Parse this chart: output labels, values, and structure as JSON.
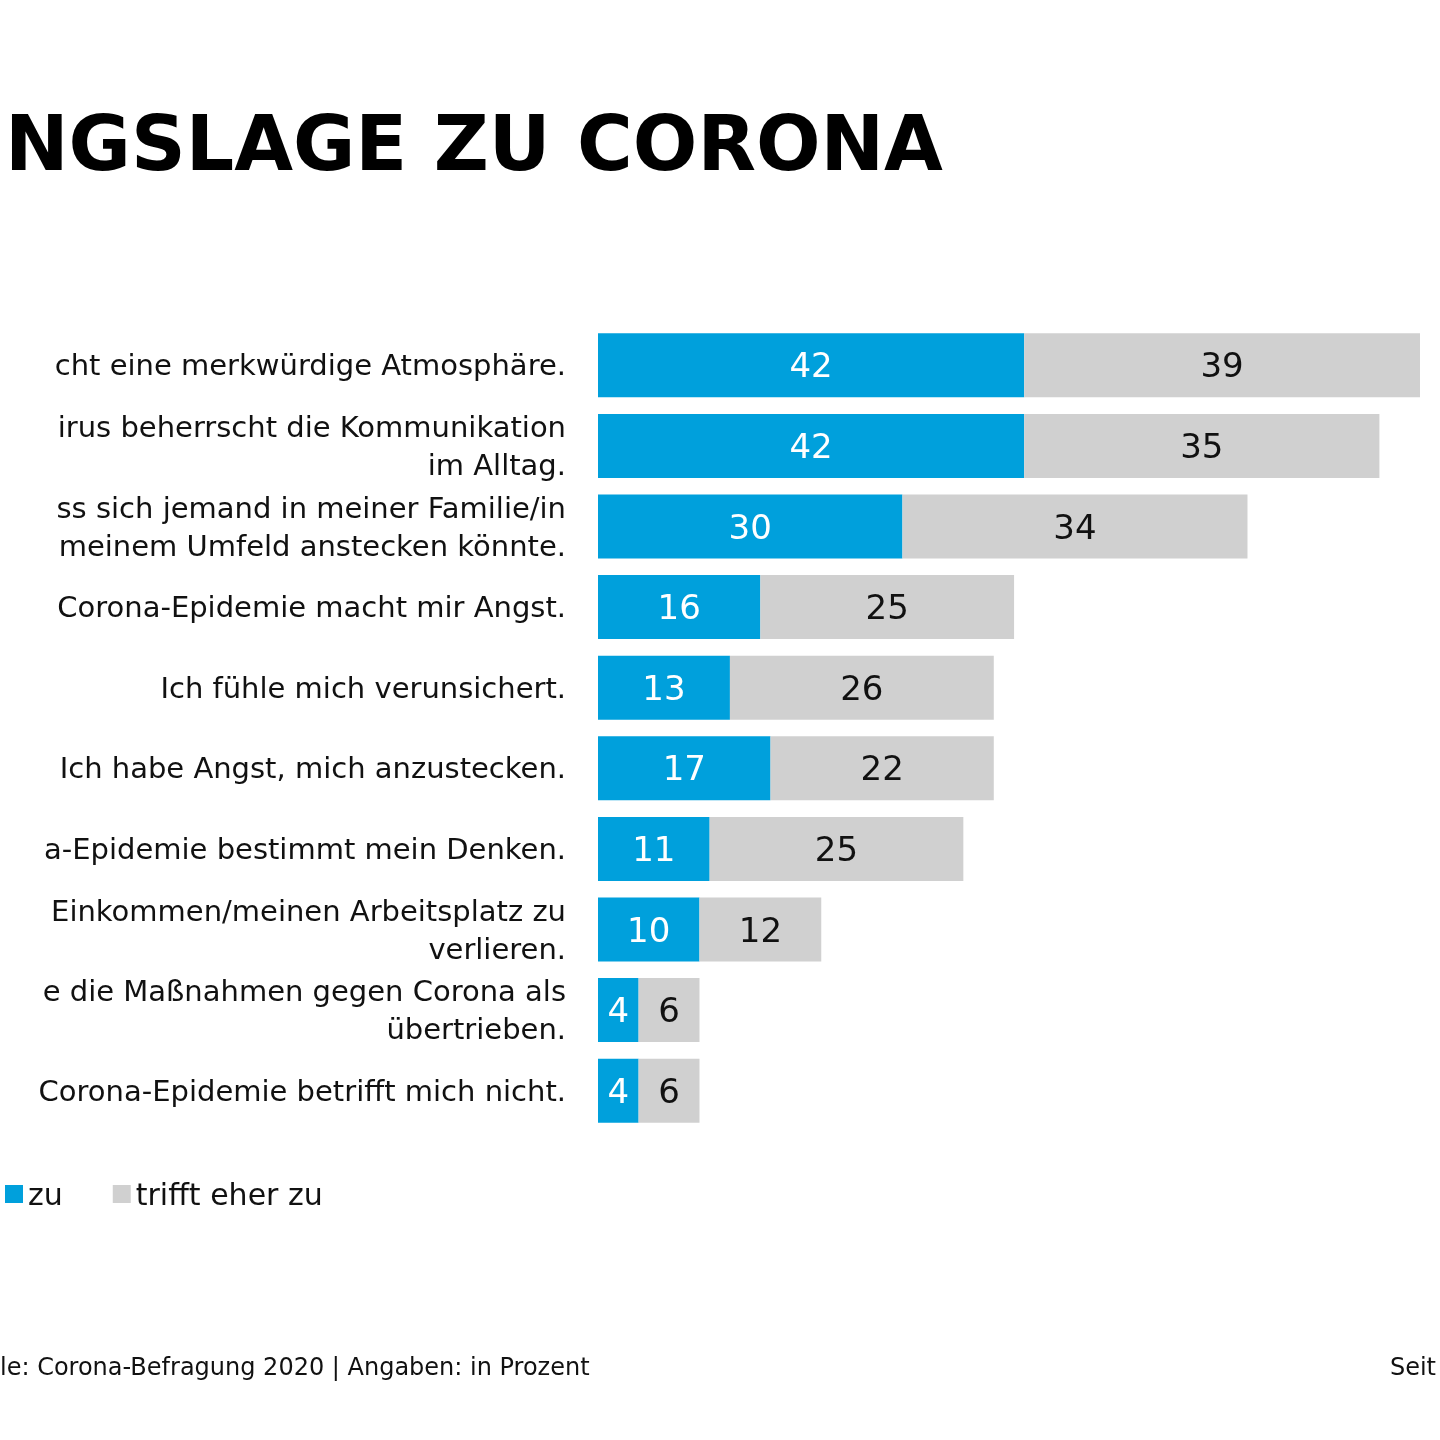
{
  "chart_data": {
    "type": "bar",
    "orientation": "horizontal",
    "stacked": true,
    "title": "NGSLAGE ZU CORONA",
    "categories": [
      "cht eine merkwürdige Atmosphäre.",
      "irus beherrscht die Kommunikation\nim Alltag.",
      "ss sich jemand in meiner Familie/in\nmeinem Umfeld anstecken könnte.",
      "Corona-Epidemie macht mir Angst.",
      "Ich fühle mich verunsichert.",
      "Ich habe Angst, mich anzustecken.",
      "a-Epidemie bestimmt mein Denken.",
      "Einkommen/meinen Arbeitsplatz zu\nverlieren.",
      "e die Maßnahmen gegen Corona als\nübertrieben.",
      "Corona-Epidemie betrifft mich nicht."
    ],
    "series": [
      {
        "name": "zu",
        "color": "#00a0dc",
        "values": [
          42,
          42,
          30,
          16,
          13,
          17,
          11,
          10,
          4,
          4
        ]
      },
      {
        "name": "trifft eher zu",
        "color": "#d0d0d0",
        "values": [
          39,
          35,
          34,
          25,
          26,
          22,
          25,
          12,
          6,
          6
        ]
      }
    ],
    "data_labels": true,
    "legend": "bottom left",
    "tick_labels": "y",
    "annotations": [
      "le: Corona-Befragung 2020 | Angaben: in Prozent",
      "Seit"
    ]
  }
}
